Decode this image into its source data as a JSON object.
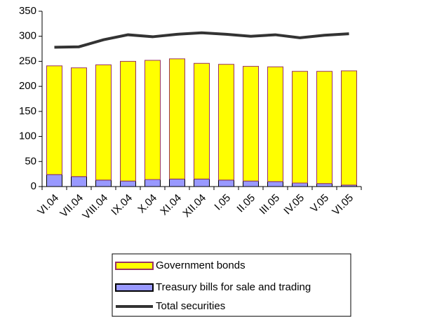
{
  "chart_data": {
    "type": "bar",
    "categories": [
      "VI.04",
      "VII.04",
      "VIII.04",
      "IX.04",
      "X.04",
      "XI.04",
      "XII.04",
      "I.05",
      "II.05",
      "III.05",
      "IV.05",
      "V.05",
      "VI.05"
    ],
    "series": [
      {
        "name": "Government bonds",
        "color": "#ffff00",
        "values": [
          217,
          217,
          230,
          239,
          238,
          240,
          231,
          231,
          229,
          229,
          223,
          224,
          228
        ]
      },
      {
        "name": "Treasury bills for sale and trading",
        "color": "#9999ff",
        "values": [
          24,
          20,
          13,
          11,
          14,
          15,
          15,
          13,
          11,
          10,
          7,
          6,
          3
        ]
      },
      {
        "name": "Total securities",
        "type": "line",
        "color": "#333333",
        "values": [
          278,
          279,
          293,
          303,
          299,
          304,
          307,
          304,
          300,
          303,
          297,
          302,
          305
        ]
      }
    ],
    "ylim": [
      0,
      350
    ],
    "yticks": [
      0,
      50,
      100,
      150,
      200,
      250,
      300,
      350
    ]
  }
}
